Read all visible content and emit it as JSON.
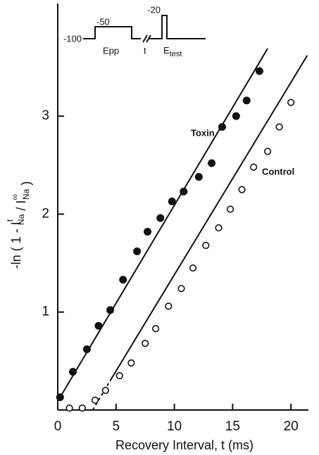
{
  "chart_data": {
    "type": "scatter",
    "xlabel": "Recovery Interval, t (ms)",
    "ylabel": [
      {
        "t": "-ln ( 1 - I"
      },
      {
        "sup": "t",
        "sub": "Na"
      },
      {
        "t": " / I"
      },
      {
        "sup": "∞",
        "sub": "Na"
      },
      {
        "t": " )"
      }
    ],
    "xlim": [
      0,
      21.5
    ],
    "ylim": [
      0,
      4.15
    ],
    "xticks": [
      0,
      5,
      10,
      15,
      20
    ],
    "yticks": [
      1,
      2,
      3
    ],
    "series": [
      {
        "name": "Toxin",
        "color": "#111111",
        "filled": true,
        "x": [
          0.2,
          1.3,
          2.5,
          3.5,
          4.5,
          5.6,
          6.8,
          7.7,
          8.8,
          9.8,
          10.8,
          12.1,
          13.2,
          14.1,
          15.3,
          16.2,
          17.3
        ],
        "y": [
          0.13,
          0.39,
          0.62,
          0.86,
          1.02,
          1.33,
          1.62,
          1.82,
          1.96,
          2.13,
          2.23,
          2.38,
          2.52,
          2.89,
          3.0,
          3.16,
          3.46
        ]
      },
      {
        "name": "Control",
        "color": "#111111",
        "filled": false,
        "x": [
          1.0,
          2.1,
          3.2,
          4.1,
          5.3,
          6.3,
          7.5,
          8.4,
          9.5,
          10.6,
          11.6,
          12.7,
          13.8,
          14.8,
          15.8,
          16.8,
          18.0,
          19.0,
          20.0
        ],
        "y": [
          0.02,
          0.02,
          0.1,
          0.2,
          0.35,
          0.48,
          0.68,
          0.83,
          1.06,
          1.24,
          1.45,
          1.68,
          1.86,
          2.05,
          2.25,
          2.48,
          2.64,
          2.89,
          3.14
        ]
      }
    ],
    "lines": [
      {
        "x": [
          0,
          18.0
        ],
        "y": [
          0.09,
          3.69
        ],
        "style": "solid"
      },
      {
        "x": [
          3.0,
          4.5
        ],
        "y": [
          0,
          0.3
        ],
        "style": "dashed"
      },
      {
        "x": [
          4.5,
          21.4
        ],
        "y": [
          0.3,
          3.62
        ],
        "style": "solid"
      }
    ],
    "inset": {
      "baseline": "-100",
      "prepulse": "-50",
      "test": "-20",
      "prepulse_label": "Epp",
      "interval_label": "t",
      "test_label": {
        "main": "E",
        "sub": "test"
      }
    }
  }
}
